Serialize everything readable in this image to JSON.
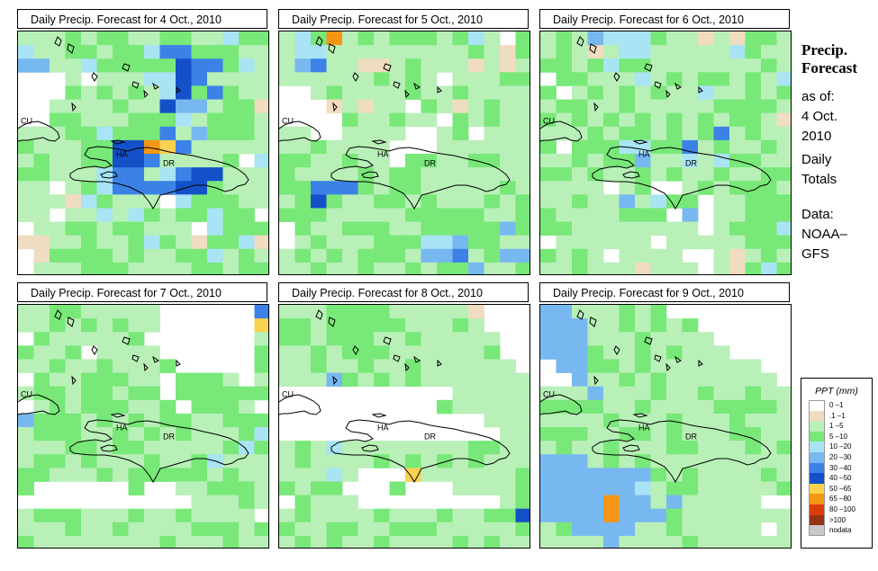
{
  "header": {
    "title_line1": "Precip.",
    "title_line2": "Forecast",
    "asof_label": "as of:",
    "asof_date_line1": "4 Oct.",
    "asof_date_line2": "2010",
    "totals_line1": "Daily",
    "totals_line2": "Totals",
    "data_line1": "Data:",
    "data_line2": "NOAA–",
    "data_line3": "GFS"
  },
  "panels": [
    {
      "title": "Daily Precip. Forecast for  4 Oct., 2010"
    },
    {
      "title": "Daily Precip. Forecast for  5 Oct., 2010"
    },
    {
      "title": "Daily Precip. Forecast for  6 Oct., 2010"
    },
    {
      "title": "Daily Precip. Forecast for  7 Oct., 2010"
    },
    {
      "title": "Daily Precip. Forecast for  8 Oct., 2010"
    },
    {
      "title": "Daily Precip. Forecast for  9 Oct., 2010"
    }
  ],
  "map_labels": {
    "cuba": "CU",
    "haiti": "HA",
    "dominican_republic": "DR"
  },
  "legend": {
    "title": "PPT (mm)",
    "items": [
      {
        "label": "0 –1",
        "color": "#ffffff"
      },
      {
        "label": ".1 –1",
        "color": "#f0dcc0"
      },
      {
        "label": "1 –5",
        "color": "#b8f0b8"
      },
      {
        "label": "5 –10",
        "color": "#78e878"
      },
      {
        "label": "10 –20",
        "color": "#a8e4f4"
      },
      {
        "label": "20 –30",
        "color": "#78b8f0"
      },
      {
        "label": "30 –40",
        "color": "#3c82e6"
      },
      {
        "label": "40 –50",
        "color": "#1450c8"
      },
      {
        "label": "50 –65",
        "color": "#fad250"
      },
      {
        "label": "65 –80",
        "color": "#f59614"
      },
      {
        "label": "80 –100",
        "color": "#dc3c0a"
      },
      {
        "label": ">100",
        "color": "#963214"
      },
      {
        "label": "nodata",
        "color": "#c8c8c8"
      }
    ]
  },
  "forecast_grids": [
    [
      "2223233223322433",
      "4223323346633322",
      "5522433333766342",
      "0002022244762222",
      "0003232324736322",
      "0022223227552331",
      "0033222333423332",
      "2223343336253332",
      "3222337798622222",
      "2322337762222304",
      "3322246624677222",
      "2202346666773222",
      "2221432220433322",
      "2202242432334330",
      "0223323322204333",
      "1122322343213341",
      "0133332322334232",
      "0222333222233233"
    ],
    [
      "2439232333234203",
      "2442222222223213",
      "2562211232221212",
      "2222223232022233",
      "0023222232232222",
      "0001212203212322",
      "0000322322032322",
      "2200222200230222",
      "2232222000222222",
      "3322322033223322",
      "3222232332222222",
      "3366632332222232",
      "2373223323222323",
      "3332222233333223",
      "0322333223333353",
      "0232223334453322",
      "2323233325562355",
      "2232232232335223"
    ],
    [
      "2325444322121332",
      "2321244222224322",
      "3323433222222232",
      "0332224232332324",
      "3023232322422323",
      "2332232222233332",
      "3232323232323321",
      "2223233232362322",
      "3033344336232232",
      "2232335224243322",
      "3323223232232233",
      "2222023002323332",
      "2232252433022333",
      "3222233305022333",
      "3322222222023334",
      "0222222022222333",
      "3232022220021232",
      "2232221222021343"
    ],
    [
      "2233222220000006",
      "2232323220000008",
      "0322222300000002",
      "3223022220000003",
      "2232232223000003",
      "0322333220333202",
      "2332332330333333",
      "0232333223033320",
      "5333232323322333",
      "2333223232322234",
      "2223323322222343",
      "2332322232234222",
      "3322232333332322",
      "3000000300223332",
      "0000000000022232",
      "2333222322322220",
      "2223223222233323",
      "3222222223222322"
    ],
    [
      "2223333222221000",
      "3323333322232000",
      "3323332232222200",
      "2232333222222300",
      "2232232232222220",
      "2225323232222222",
      "0000000000022222",
      "0000000000322222",
      "0000000000000222",
      "0000000000000022",
      "2324222222223322",
      "2322223232323222",
      "2224200082222223",
      "3233000300022223",
      "0322200000000023",
      "2322223222322337",
      "3223322333222223",
      "2323223222232322"
    ],
    [
      "5522232300000000",
      "5552232323000000",
      "5552223222200000",
      "5553223232220000",
      "0553323222222200",
      "0052232322222220",
      "2225222322322322",
      "3333223222233332",
      "2222322232223222",
      "3332233232223322",
      "2322322233222323",
      "5552323222222222",
      "5555555323222232",
      "5555554233222223",
      "5555955252222200",
      "5555955532222222",
      "2355552232222202",
      "2222522223222222"
    ]
  ]
}
